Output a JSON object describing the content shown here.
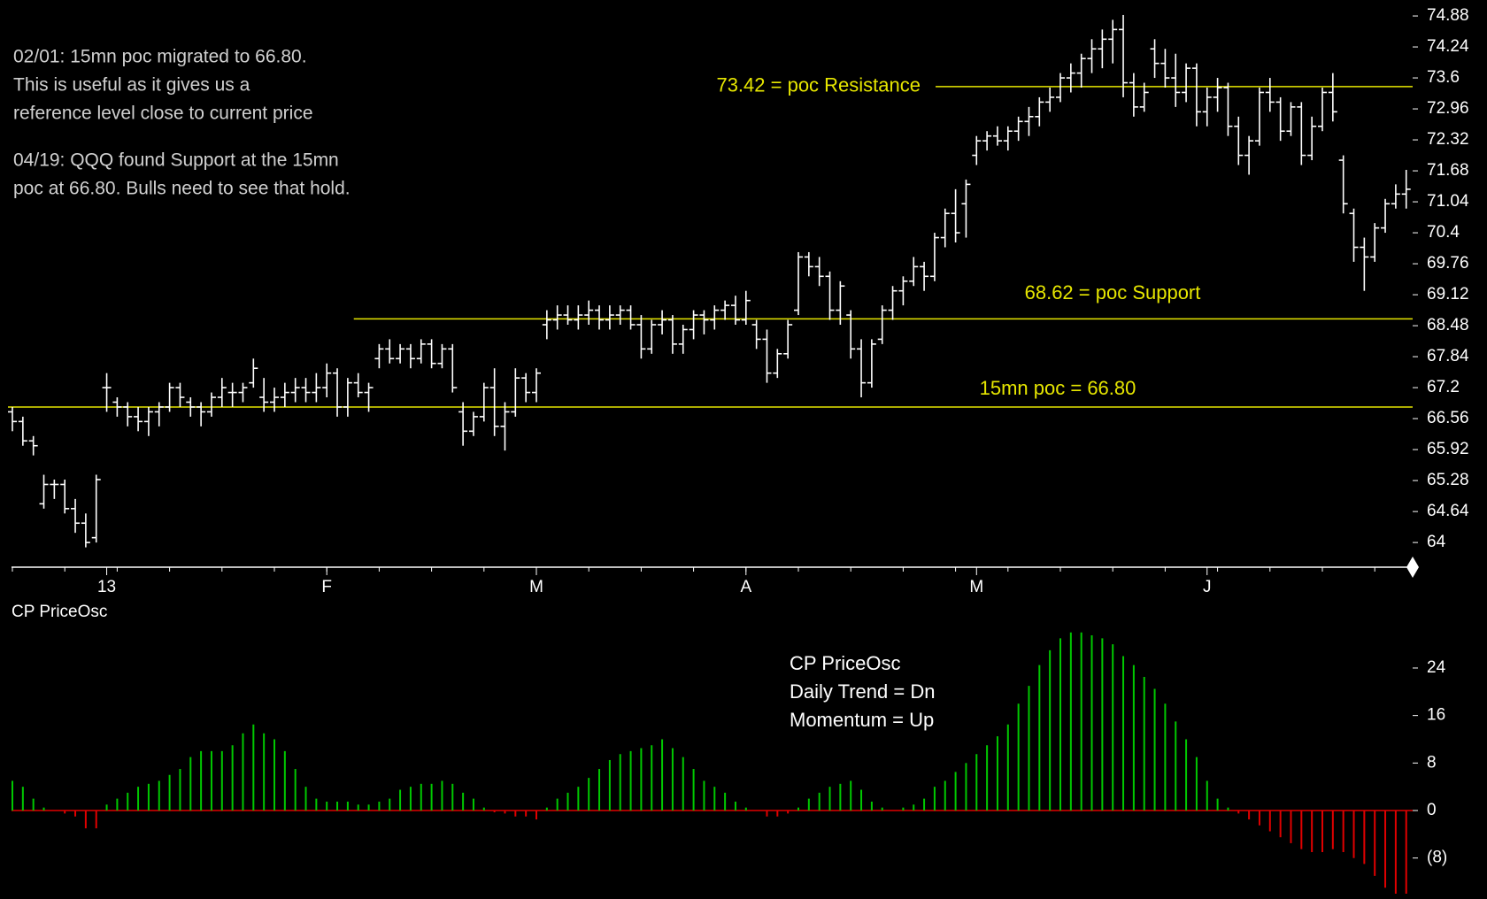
{
  "chart_data": {
    "type": "ohlc",
    "price_panel": {
      "ylim": [
        63.49,
        75.21
      ],
      "yticks": [
        74.88,
        74.24,
        73.6,
        72.96,
        72.32,
        71.68,
        71.04,
        70.4,
        69.76,
        69.12,
        68.48,
        67.84,
        67.2,
        66.56,
        65.92,
        65.28,
        64.64,
        64
      ],
      "bar_color": "#ffffff",
      "ohlc": [
        [
          66.7,
          66.8,
          66.3,
          66.5
        ],
        [
          66.5,
          66.6,
          66.0,
          66.1
        ],
        [
          66.1,
          66.2,
          65.8,
          66.0
        ],
        [
          64.8,
          65.4,
          64.7,
          65.2
        ],
        [
          65.2,
          65.3,
          64.9,
          65.2
        ],
        [
          65.2,
          65.3,
          64.6,
          64.7
        ],
        [
          64.7,
          64.9,
          64.2,
          64.4
        ],
        [
          64.4,
          64.6,
          63.9,
          64.0
        ],
        [
          64.1,
          65.4,
          64.0,
          65.3
        ],
        [
          67.2,
          67.5,
          66.7,
          67.2
        ],
        [
          66.9,
          67.0,
          66.6,
          66.8
        ],
        [
          66.8,
          66.9,
          66.4,
          66.6
        ],
        [
          66.6,
          66.8,
          66.3,
          66.5
        ],
        [
          66.5,
          66.8,
          66.2,
          66.7
        ],
        [
          66.7,
          66.9,
          66.4,
          66.8
        ],
        [
          66.8,
          67.3,
          66.7,
          67.2
        ],
        [
          67.2,
          67.3,
          66.8,
          67.0
        ],
        [
          66.9,
          67.0,
          66.6,
          66.8
        ],
        [
          66.8,
          66.9,
          66.4,
          66.7
        ],
        [
          66.7,
          67.1,
          66.6,
          67.0
        ],
        [
          67.0,
          67.4,
          66.8,
          67.2
        ],
        [
          67.1,
          67.3,
          66.8,
          67.1
        ],
        [
          67.1,
          67.3,
          66.9,
          67.2
        ],
        [
          67.3,
          67.8,
          67.2,
          67.6
        ],
        [
          67.0,
          67.4,
          66.7,
          66.9
        ],
        [
          66.9,
          67.2,
          66.7,
          67.0
        ],
        [
          67.0,
          67.3,
          66.8,
          67.1
        ],
        [
          67.1,
          67.4,
          66.9,
          67.2
        ],
        [
          67.2,
          67.4,
          66.9,
          67.1
        ],
        [
          67.1,
          67.5,
          66.9,
          67.2
        ],
        [
          67.2,
          67.7,
          67.0,
          67.5
        ],
        [
          67.5,
          67.6,
          66.6,
          66.8
        ],
        [
          66.8,
          67.4,
          66.6,
          67.3
        ],
        [
          67.3,
          67.5,
          67.0,
          67.1
        ],
        [
          67.1,
          67.3,
          66.7,
          67.2
        ],
        [
          67.8,
          68.1,
          67.6,
          68.0
        ],
        [
          68.0,
          68.2,
          67.7,
          67.8
        ],
        [
          67.8,
          68.1,
          67.7,
          68.0
        ],
        [
          68.0,
          68.1,
          67.6,
          67.8
        ],
        [
          67.8,
          68.2,
          67.7,
          68.1
        ],
        [
          68.1,
          68.2,
          67.6,
          67.7
        ],
        [
          67.7,
          68.1,
          67.6,
          68.0
        ],
        [
          68.0,
          68.1,
          67.1,
          67.2
        ],
        [
          66.7,
          66.9,
          66.0,
          66.3
        ],
        [
          66.3,
          66.7,
          66.2,
          66.6
        ],
        [
          66.6,
          67.3,
          66.5,
          67.2
        ],
        [
          67.2,
          67.6,
          66.2,
          66.4
        ],
        [
          66.4,
          66.9,
          65.9,
          66.7
        ],
        [
          66.7,
          67.6,
          66.6,
          67.4
        ],
        [
          67.4,
          67.5,
          66.9,
          67.1
        ],
        [
          67.1,
          67.6,
          66.9,
          67.5
        ],
        [
          68.5,
          68.8,
          68.2,
          68.6
        ],
        [
          68.6,
          68.9,
          68.4,
          68.7
        ],
        [
          68.7,
          68.9,
          68.5,
          68.6
        ],
        [
          68.6,
          68.9,
          68.4,
          68.7
        ],
        [
          68.7,
          69.0,
          68.5,
          68.8
        ],
        [
          68.8,
          68.9,
          68.4,
          68.6
        ],
        [
          68.6,
          68.9,
          68.4,
          68.7
        ],
        [
          68.7,
          68.9,
          68.5,
          68.8
        ],
        [
          68.8,
          68.9,
          68.4,
          68.5
        ],
        [
          68.5,
          68.7,
          67.8,
          68.0
        ],
        [
          68.0,
          68.6,
          67.9,
          68.5
        ],
        [
          68.5,
          68.8,
          68.3,
          68.6
        ],
        [
          68.6,
          68.7,
          67.9,
          68.1
        ],
        [
          68.1,
          68.5,
          67.9,
          68.4
        ],
        [
          68.4,
          68.8,
          68.2,
          68.7
        ],
        [
          68.7,
          68.8,
          68.3,
          68.6
        ],
        [
          68.6,
          68.9,
          68.4,
          68.8
        ],
        [
          68.8,
          69.0,
          68.6,
          68.9
        ],
        [
          68.9,
          69.1,
          68.5,
          68.6
        ],
        [
          68.6,
          69.2,
          68.5,
          69.0
        ],
        [
          68.5,
          68.6,
          68.0,
          68.2
        ],
        [
          68.2,
          68.4,
          67.3,
          67.5
        ],
        [
          67.5,
          68.0,
          67.4,
          67.9
        ],
        [
          67.9,
          68.6,
          67.8,
          68.5
        ],
        [
          68.8,
          70.0,
          68.7,
          69.9
        ],
        [
          69.9,
          70.0,
          69.5,
          69.7
        ],
        [
          69.7,
          69.9,
          69.3,
          69.5
        ],
        [
          69.5,
          69.6,
          68.6,
          68.8
        ],
        [
          68.8,
          69.4,
          68.5,
          69.3
        ],
        [
          68.7,
          68.8,
          67.8,
          68.0
        ],
        [
          68.0,
          68.2,
          67.0,
          67.3
        ],
        [
          67.3,
          68.2,
          67.2,
          68.1
        ],
        [
          68.2,
          68.9,
          68.1,
          68.8
        ],
        [
          68.8,
          69.3,
          68.6,
          69.2
        ],
        [
          69.2,
          69.5,
          68.9,
          69.4
        ],
        [
          69.4,
          69.9,
          69.3,
          69.7
        ],
        [
          69.7,
          69.8,
          69.2,
          69.5
        ],
        [
          69.5,
          70.4,
          69.4,
          70.3
        ],
        [
          70.3,
          70.9,
          70.1,
          70.8
        ],
        [
          70.8,
          71.3,
          70.2,
          70.4
        ],
        [
          71.0,
          71.5,
          70.3,
          71.4
        ],
        [
          72.0,
          72.4,
          71.8,
          72.3
        ],
        [
          72.3,
          72.5,
          72.1,
          72.4
        ],
        [
          72.4,
          72.6,
          72.2,
          72.3
        ],
        [
          72.3,
          72.6,
          72.1,
          72.5
        ],
        [
          72.5,
          72.8,
          72.3,
          72.7
        ],
        [
          72.7,
          73.0,
          72.4,
          72.8
        ],
        [
          72.8,
          73.2,
          72.6,
          73.1
        ],
        [
          73.1,
          73.4,
          72.9,
          73.2
        ],
        [
          73.2,
          73.7,
          73.1,
          73.6
        ],
        [
          73.6,
          73.9,
          73.3,
          73.7
        ],
        [
          73.7,
          74.1,
          73.4,
          74.0
        ],
        [
          74.0,
          74.4,
          73.7,
          74.2
        ],
        [
          74.2,
          74.6,
          73.8,
          74.4
        ],
        [
          74.4,
          74.8,
          73.9,
          74.6
        ],
        [
          74.6,
          74.9,
          73.2,
          73.5
        ],
        [
          73.5,
          73.7,
          72.8,
          73.0
        ],
        [
          73.0,
          73.5,
          72.9,
          73.3
        ],
        [
          74.2,
          74.4,
          73.6,
          73.9
        ],
        [
          73.9,
          74.2,
          73.4,
          73.6
        ],
        [
          73.6,
          74.1,
          73.0,
          73.3
        ],
        [
          73.3,
          73.9,
          73.1,
          73.8
        ],
        [
          73.8,
          73.9,
          72.6,
          72.9
        ],
        [
          72.9,
          73.4,
          72.6,
          73.2
        ],
        [
          73.2,
          73.6,
          72.9,
          73.4
        ],
        [
          73.4,
          73.5,
          72.4,
          72.6
        ],
        [
          72.6,
          72.8,
          71.8,
          72.0
        ],
        [
          72.0,
          72.4,
          71.6,
          72.3
        ],
        [
          72.3,
          73.4,
          72.2,
          73.3
        ],
        [
          73.3,
          73.6,
          72.9,
          73.1
        ],
        [
          73.1,
          73.2,
          72.3,
          72.5
        ],
        [
          72.5,
          73.1,
          72.4,
          73.0
        ],
        [
          73.0,
          73.1,
          71.8,
          72.0
        ],
        [
          72.0,
          72.8,
          71.9,
          72.6
        ],
        [
          72.6,
          73.4,
          72.5,
          73.3
        ],
        [
          73.3,
          73.7,
          72.7,
          72.9
        ],
        [
          71.9,
          72.0,
          70.8,
          71.0
        ],
        [
          70.8,
          70.9,
          69.8,
          70.1
        ],
        [
          70.1,
          70.3,
          69.2,
          69.9
        ],
        [
          69.9,
          70.6,
          69.8,
          70.5
        ],
        [
          70.5,
          71.1,
          70.4,
          71.0
        ],
        [
          71.0,
          71.4,
          70.9,
          71.2
        ],
        [
          71.2,
          71.7,
          70.9,
          71.3
        ]
      ],
      "levels": [
        {
          "value": 73.42,
          "label": "73.42 = poc Resistance",
          "start": 82,
          "color": "#e6e600"
        },
        {
          "value": 68.62,
          "label": "68.62 = poc Support",
          "start": 33,
          "color": "#e6e600"
        },
        {
          "value": 66.8,
          "label": "15mn poc = 66.80",
          "start": 0,
          "color": "#e6e600"
        }
      ],
      "notes": [
        [
          "02/01: 15mn poc migrated to 66.80.",
          "This is useful as it gives us a",
          "reference level close to current price"
        ],
        [
          "04/19: QQQ found Support at the 15mn",
          "poc at 66.80.  Bulls need to see that hold."
        ]
      ],
      "xlabels": [
        {
          "index": 9,
          "label": "13"
        },
        {
          "index": 30,
          "label": "F"
        },
        {
          "index": 50,
          "label": "M"
        },
        {
          "index": 70,
          "label": "A"
        },
        {
          "index": 92,
          "label": "M"
        },
        {
          "index": 114,
          "label": "J"
        }
      ]
    },
    "osc_panel": {
      "title": "CP PriceOsc",
      "legend": [
        "CP PriceOsc",
        "Daily Trend = Dn",
        "Momentum = Up"
      ],
      "ylim": [
        -14.9,
        30.7
      ],
      "yticks": [
        24,
        16,
        8,
        0,
        {
          "value": -8,
          "label": "(8)"
        }
      ],
      "up_color": "#00c800",
      "down_color": "#e00000",
      "values": [
        5,
        4,
        2,
        0.5,
        0,
        -0.5,
        -1,
        -3,
        -3,
        1,
        2,
        3,
        4,
        4.5,
        5,
        6,
        7,
        9,
        10,
        10,
        10,
        11,
        13,
        14.5,
        13,
        12,
        10,
        7,
        4,
        2,
        1.5,
        1.5,
        1.5,
        1,
        1,
        1.5,
        2,
        3.5,
        4,
        4.5,
        4.5,
        5,
        4.5,
        3,
        2,
        0.5,
        -0.3,
        -0.5,
        -1,
        -1,
        -1.5,
        0.5,
        2,
        3,
        4,
        5.5,
        7,
        8.5,
        9.5,
        10,
        10.5,
        11,
        12,
        10.5,
        9,
        7,
        5,
        4,
        3,
        1.5,
        0.5,
        0,
        -1,
        -1,
        -0.5,
        0.5,
        2,
        3,
        4,
        4.5,
        5,
        3.5,
        1.5,
        0.5,
        0,
        0.5,
        1,
        2,
        4,
        5,
        6.5,
        8,
        9.5,
        11,
        12.5,
        14.5,
        18,
        21,
        24.5,
        27,
        29,
        30,
        30,
        29.5,
        29,
        28,
        26,
        24.5,
        22.5,
        20.5,
        18,
        15,
        12,
        9,
        5,
        2,
        0.5,
        -0.5,
        -1.5,
        -2.5,
        -3.5,
        -4.5,
        -5.5,
        -6.5,
        -7,
        -7,
        -6.5,
        -7,
        -8,
        -9,
        -11,
        -13,
        -14,
        -14
      ]
    }
  }
}
